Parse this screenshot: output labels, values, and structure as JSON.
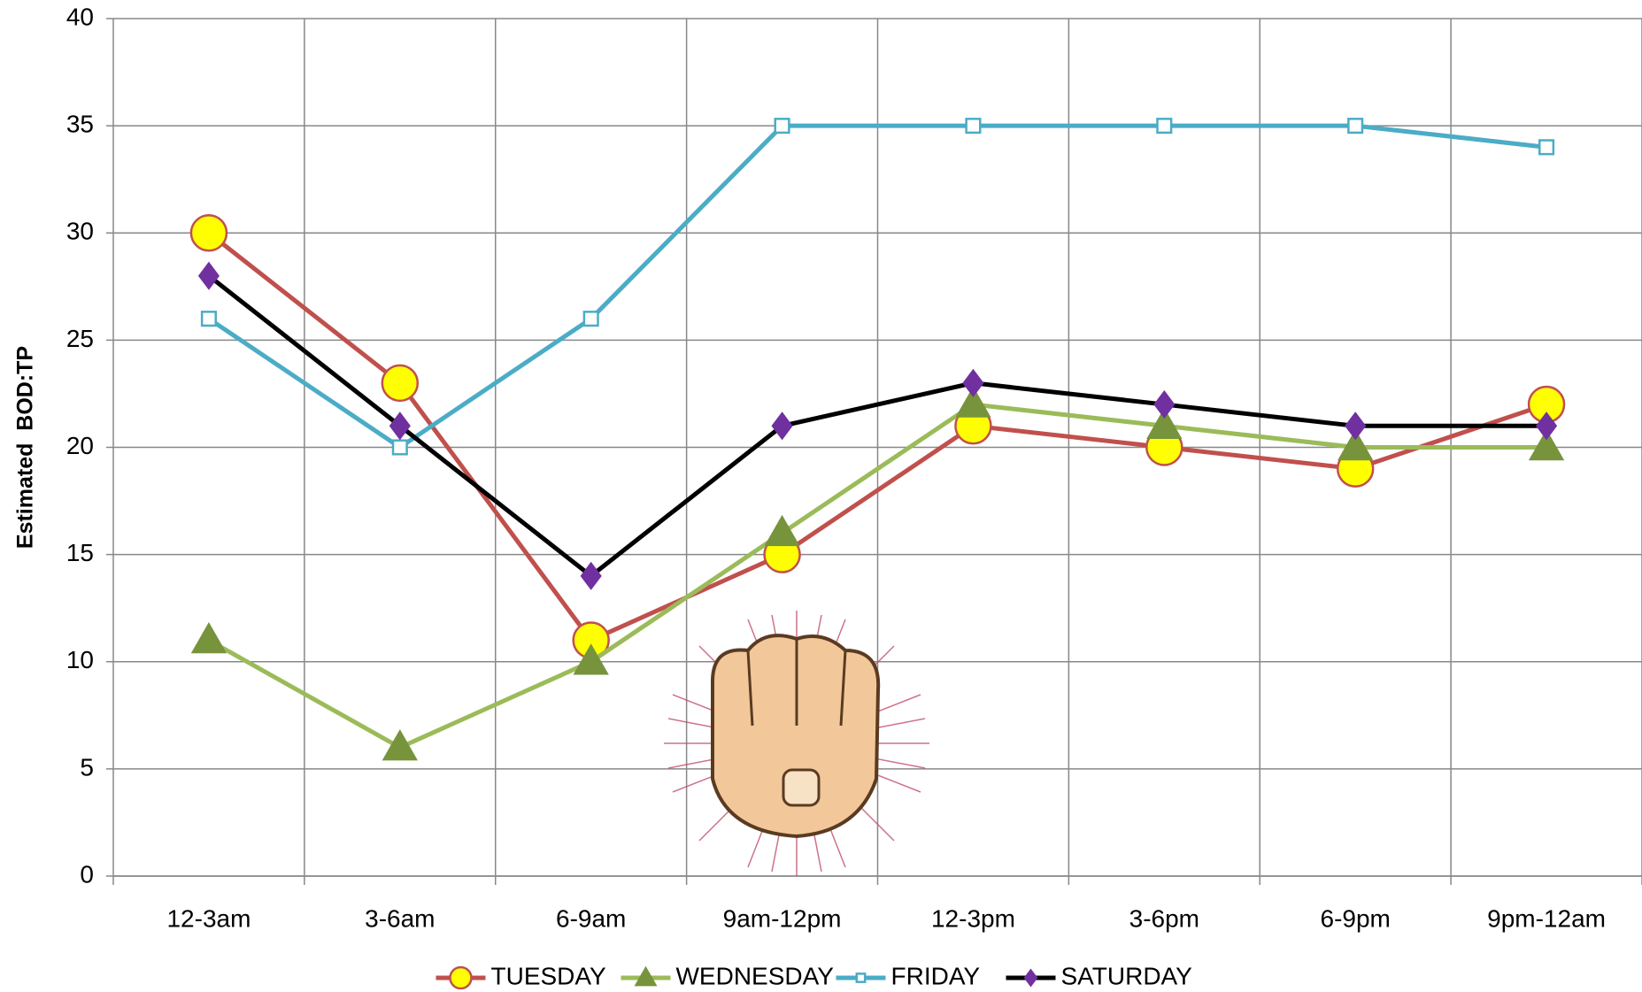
{
  "chart_data": {
    "type": "line",
    "y_label": "Estimated  BOD:TP",
    "categories": [
      "12-3am",
      "3-6am",
      "6-9am",
      "9am-12pm",
      "12-3pm",
      "3-6pm",
      "6-9pm",
      "9pm-12am"
    ],
    "series": [
      {
        "name": "TUESDAY",
        "color": "#c0504d",
        "marker": "circle",
        "marker_color": "#ffff00",
        "values": [
          30,
          23,
          11,
          15,
          21,
          20,
          19,
          22
        ]
      },
      {
        "name": "WEDNESDAY",
        "color": "#9bbb59",
        "marker": "triangle",
        "marker_color": "#77933c",
        "values": [
          11,
          6,
          10,
          16,
          22,
          21,
          20,
          20
        ]
      },
      {
        "name": "FRIDAY",
        "color": "#4bacc6",
        "marker": "square",
        "marker_color": "#ffffff",
        "values": [
          26,
          20,
          26,
          35,
          35,
          35,
          35,
          34
        ]
      },
      {
        "name": "SATURDAY",
        "color": "#000000",
        "marker": "diamond",
        "marker_color": "#7030a0",
        "values": [
          28,
          21,
          14,
          21,
          23,
          22,
          21,
          21
        ]
      }
    ],
    "ylim": [
      0,
      40
    ],
    "yticks": [
      0,
      5,
      10,
      15,
      20,
      25,
      30,
      35,
      40
    ],
    "grid": true,
    "legend": "bottom"
  }
}
